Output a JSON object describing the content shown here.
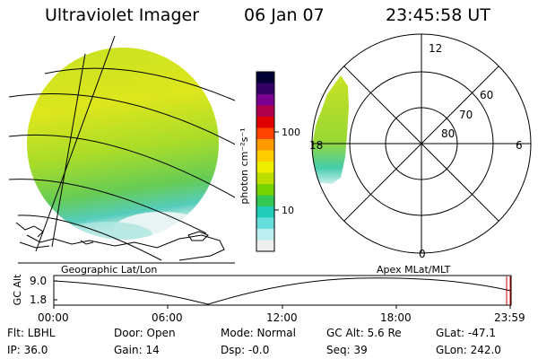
{
  "header": {
    "title": "Ultraviolet Imager",
    "date": "06 Jan 07",
    "time": "23:45:58 UT"
  },
  "left_panel": {
    "caption": "Geographic Lat/Lon"
  },
  "right_panel": {
    "caption": "Apex MLat/MLT",
    "mlt_labels": {
      "top": "12",
      "left": "18",
      "right": "6",
      "bottom": "0"
    },
    "mlat_labels": [
      "60",
      "70",
      "80"
    ]
  },
  "colorbar": {
    "unit_label": "photon cm⁻²s⁻¹",
    "scale": "log",
    "ticks": [
      "100",
      "10"
    ],
    "colors": [
      "#000033",
      "#330066",
      "#7a0090",
      "#b0004a",
      "#e00000",
      "#ff4400",
      "#ff9900",
      "#ffcc00",
      "#eeee00",
      "#bbe000",
      "#77d400",
      "#33c855",
      "#22ccbb",
      "#66dddd",
      "#bbeeee",
      "#eeeeee"
    ]
  },
  "altitude_plot": {
    "ylabel": "GC Alt",
    "y_ticks": [
      "9.0",
      "1.8"
    ],
    "x_ticks": [
      "00:00",
      "06:00",
      "12:00",
      "18:00",
      "23:59"
    ],
    "line_color": "#000000",
    "marker_color": "#cc0000"
  },
  "info": {
    "filter": "Flt: LBHL",
    "door": "Door: Open",
    "mode": "Mode: Normal",
    "gc_alt": "GC Alt: 5.6 Re",
    "glat": "GLat: -47.1",
    "ip": "IP: 36.0",
    "gain": "Gain: 14",
    "dsp": "Dsp:   -0.0",
    "seq": "Seq: 39",
    "glon": "GLon: 242.0"
  }
}
